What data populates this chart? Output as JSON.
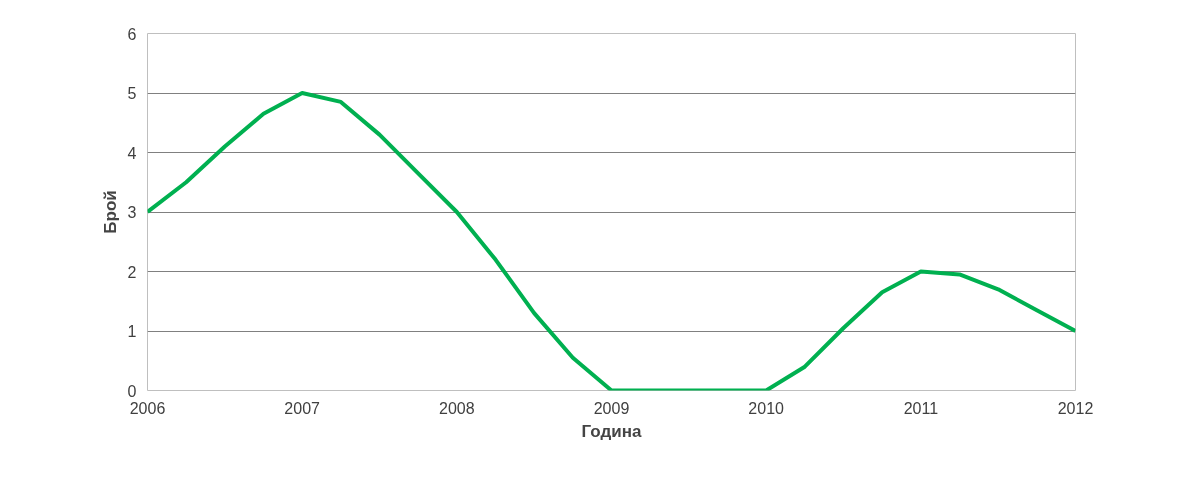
{
  "chart_data": {
    "type": "line",
    "xlabel": "Година",
    "ylabel": "Брой",
    "x": [
      2006,
      2006.25,
      2006.5,
      2006.75,
      2007,
      2007.25,
      2007.5,
      2007.75,
      2008,
      2008.25,
      2008.5,
      2008.75,
      2009,
      2009.25,
      2009.5,
      2009.75,
      2010,
      2010.25,
      2010.5,
      2010.75,
      2011,
      2011.25,
      2011.5,
      2011.75,
      2012
    ],
    "series": [
      {
        "color": "#00b050",
        "values": [
          3,
          3.5,
          4.1,
          4.65,
          5,
          4.85,
          4.3,
          3.65,
          3,
          2.2,
          1.3,
          0.55,
          0,
          0,
          0,
          0,
          0,
          0.4,
          1.05,
          1.65,
          2,
          1.95,
          1.7,
          1.35,
          1
        ]
      }
    ],
    "xlim": [
      2006,
      2012
    ],
    "ylim": [
      0,
      6
    ],
    "xticks": [
      2006,
      2007,
      2008,
      2009,
      2010,
      2011,
      2012
    ],
    "yticks": [
      0,
      1,
      2,
      3,
      4,
      5,
      6
    ],
    "grid": "y",
    "marker": "none",
    "line_style": "solid"
  }
}
